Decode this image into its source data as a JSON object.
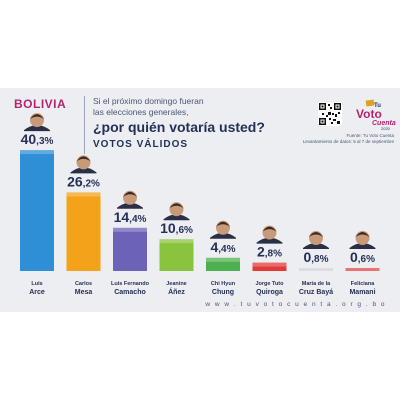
{
  "header": {
    "country": "BOLIVIA",
    "question_line1": "Si el próximo domingo fueran",
    "question_line2": "las elecciones generales,",
    "question_main": "¿por quién votaría usted?",
    "subtitle": "VOTOS VÁLIDOS",
    "source_line1": "Fuente: Tu Voto Cuenta",
    "source_line2": "Levantamiento de datos: 5 al 7 de septiembre"
  },
  "logo": {
    "line1": "Tu",
    "line2": "Voto",
    "line3": "Cuenta",
    "year": "2020"
  },
  "footer": {
    "url": "w w w . t u v o t o c u e n t a . o r g . b o"
  },
  "colors": {
    "brand": "#b5246f",
    "title": "#243056",
    "panel": "#eceef2"
  },
  "chart_data": {
    "type": "bar",
    "title": "¿por quién votaría usted?",
    "subtitle": "VOTOS VÁLIDOS",
    "unit": "%",
    "categories": [
      [
        "Luis",
        "Arce"
      ],
      [
        "Carlos",
        "Mesa"
      ],
      [
        "Luis Fernando",
        "Camacho"
      ],
      [
        "Jeanine",
        "Áñez"
      ],
      [
        "Chi Hyun",
        "Chung"
      ],
      [
        "Jorge Tuto",
        "Quiroga"
      ],
      [
        "María de la",
        "Cruz Bayá"
      ],
      [
        "Feliciana",
        "Mamani"
      ]
    ],
    "values": [
      40.3,
      26.2,
      14.4,
      10.6,
      4.4,
      2.8,
      0.8,
      0.6
    ],
    "value_labels": [
      {
        "int": "40",
        "dec": ",3%"
      },
      {
        "int": "26",
        "dec": ",2%"
      },
      {
        "int": "14",
        "dec": ",4%"
      },
      {
        "int": "10",
        "dec": ",6%"
      },
      {
        "int": "4",
        "dec": ",4%"
      },
      {
        "int": "2",
        "dec": ",8%"
      },
      {
        "int": "0",
        "dec": ",8%"
      },
      {
        "int": "0",
        "dec": ",6%"
      }
    ],
    "bar_colors": [
      "#2e8fd6",
      "#f5a21b",
      "#6c63b8",
      "#8ac43f",
      "#4caf50",
      "#e23a3a",
      "#d0d0d8",
      "#e04545"
    ],
    "ylim": [
      0,
      45
    ]
  }
}
